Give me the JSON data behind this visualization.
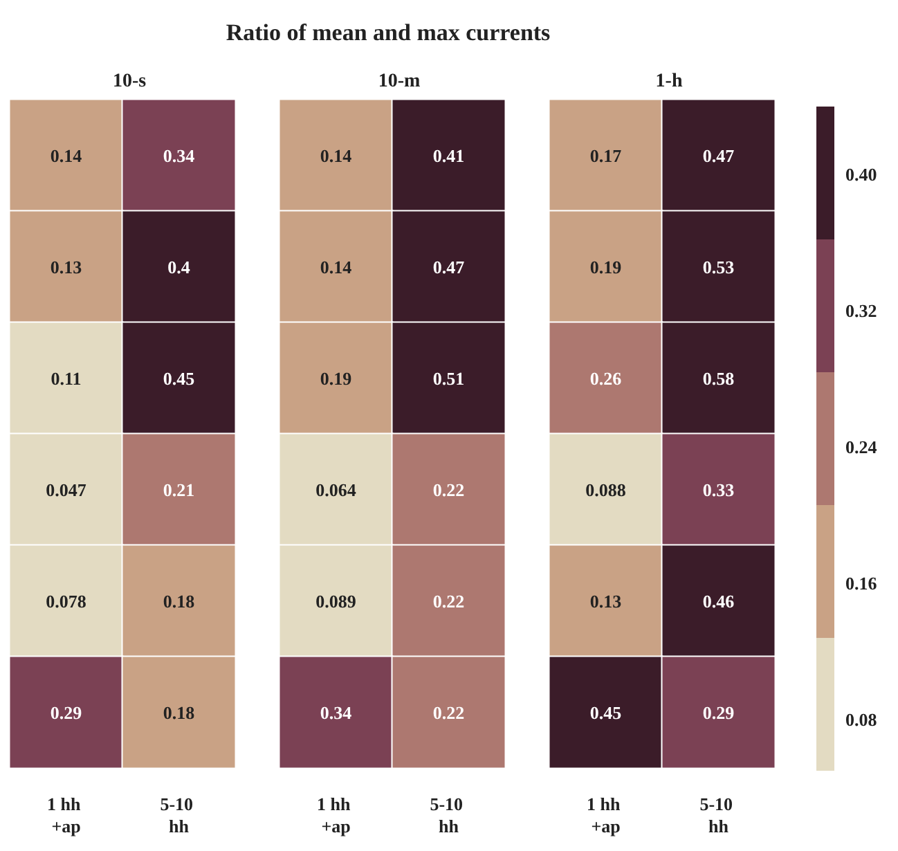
{
  "chart_data": [
    {
      "type": "heatmap",
      "subtitle": "10-s",
      "categories": [
        "1 hh +ap",
        "5-10 hh"
      ],
      "y_categories": [
        null,
        null,
        null,
        null,
        null,
        null
      ],
      "cells": [
        [
          0.14,
          0.34
        ],
        [
          0.13,
          0.4
        ],
        [
          0.11,
          0.45
        ],
        [
          0.047,
          0.21
        ],
        [
          0.078,
          0.18
        ],
        [
          0.29,
          0.18
        ]
      ],
      "data_labels": true,
      "colors": [
        "#e3dbc2",
        "#c9a285",
        "#ad7870",
        "#7b4154",
        "#3b1c29"
      ]
    },
    {
      "type": "heatmap",
      "title": "Ratio of mean and max currents",
      "subtitle": "10-m",
      "categories": [
        "1 hh +ap",
        "5-10 hh"
      ],
      "y_categories": [
        null,
        null,
        null,
        null,
        null,
        null
      ],
      "cells": [
        [
          0.14,
          0.41
        ],
        [
          0.14,
          0.47
        ],
        [
          0.19,
          0.51
        ],
        [
          0.064,
          0.22
        ],
        [
          0.089,
          0.22
        ],
        [
          0.34,
          0.22
        ]
      ],
      "data_labels": true,
      "colors": [
        "#e3dbc2",
        "#c9a285",
        "#ad7870",
        "#7b4154",
        "#3b1c29"
      ]
    },
    {
      "type": "heatmap",
      "subtitle": "1-h",
      "categories": [
        "1 hh +ap",
        "5-10 hh"
      ],
      "y_categories": [
        null,
        null,
        null,
        null,
        null,
        null
      ],
      "cells": [
        [
          0.17,
          0.47
        ],
        [
          0.19,
          0.53
        ],
        [
          0.26,
          0.58
        ],
        [
          0.088,
          0.33
        ],
        [
          0.13,
          0.46
        ],
        [
          0.45,
          0.29
        ]
      ],
      "data_labels": true,
      "clim": [
        0.05,
        0.44
      ],
      "cticks": [
        0.08,
        0.16,
        0.24,
        0.32,
        {
          "value": 0.4,
          "label": "0.40"
        }
      ],
      "colors": [
        "#e3dbc2",
        "#c9a285",
        "#ad7870",
        "#7b4154",
        "#3b1c29"
      ]
    }
  ]
}
